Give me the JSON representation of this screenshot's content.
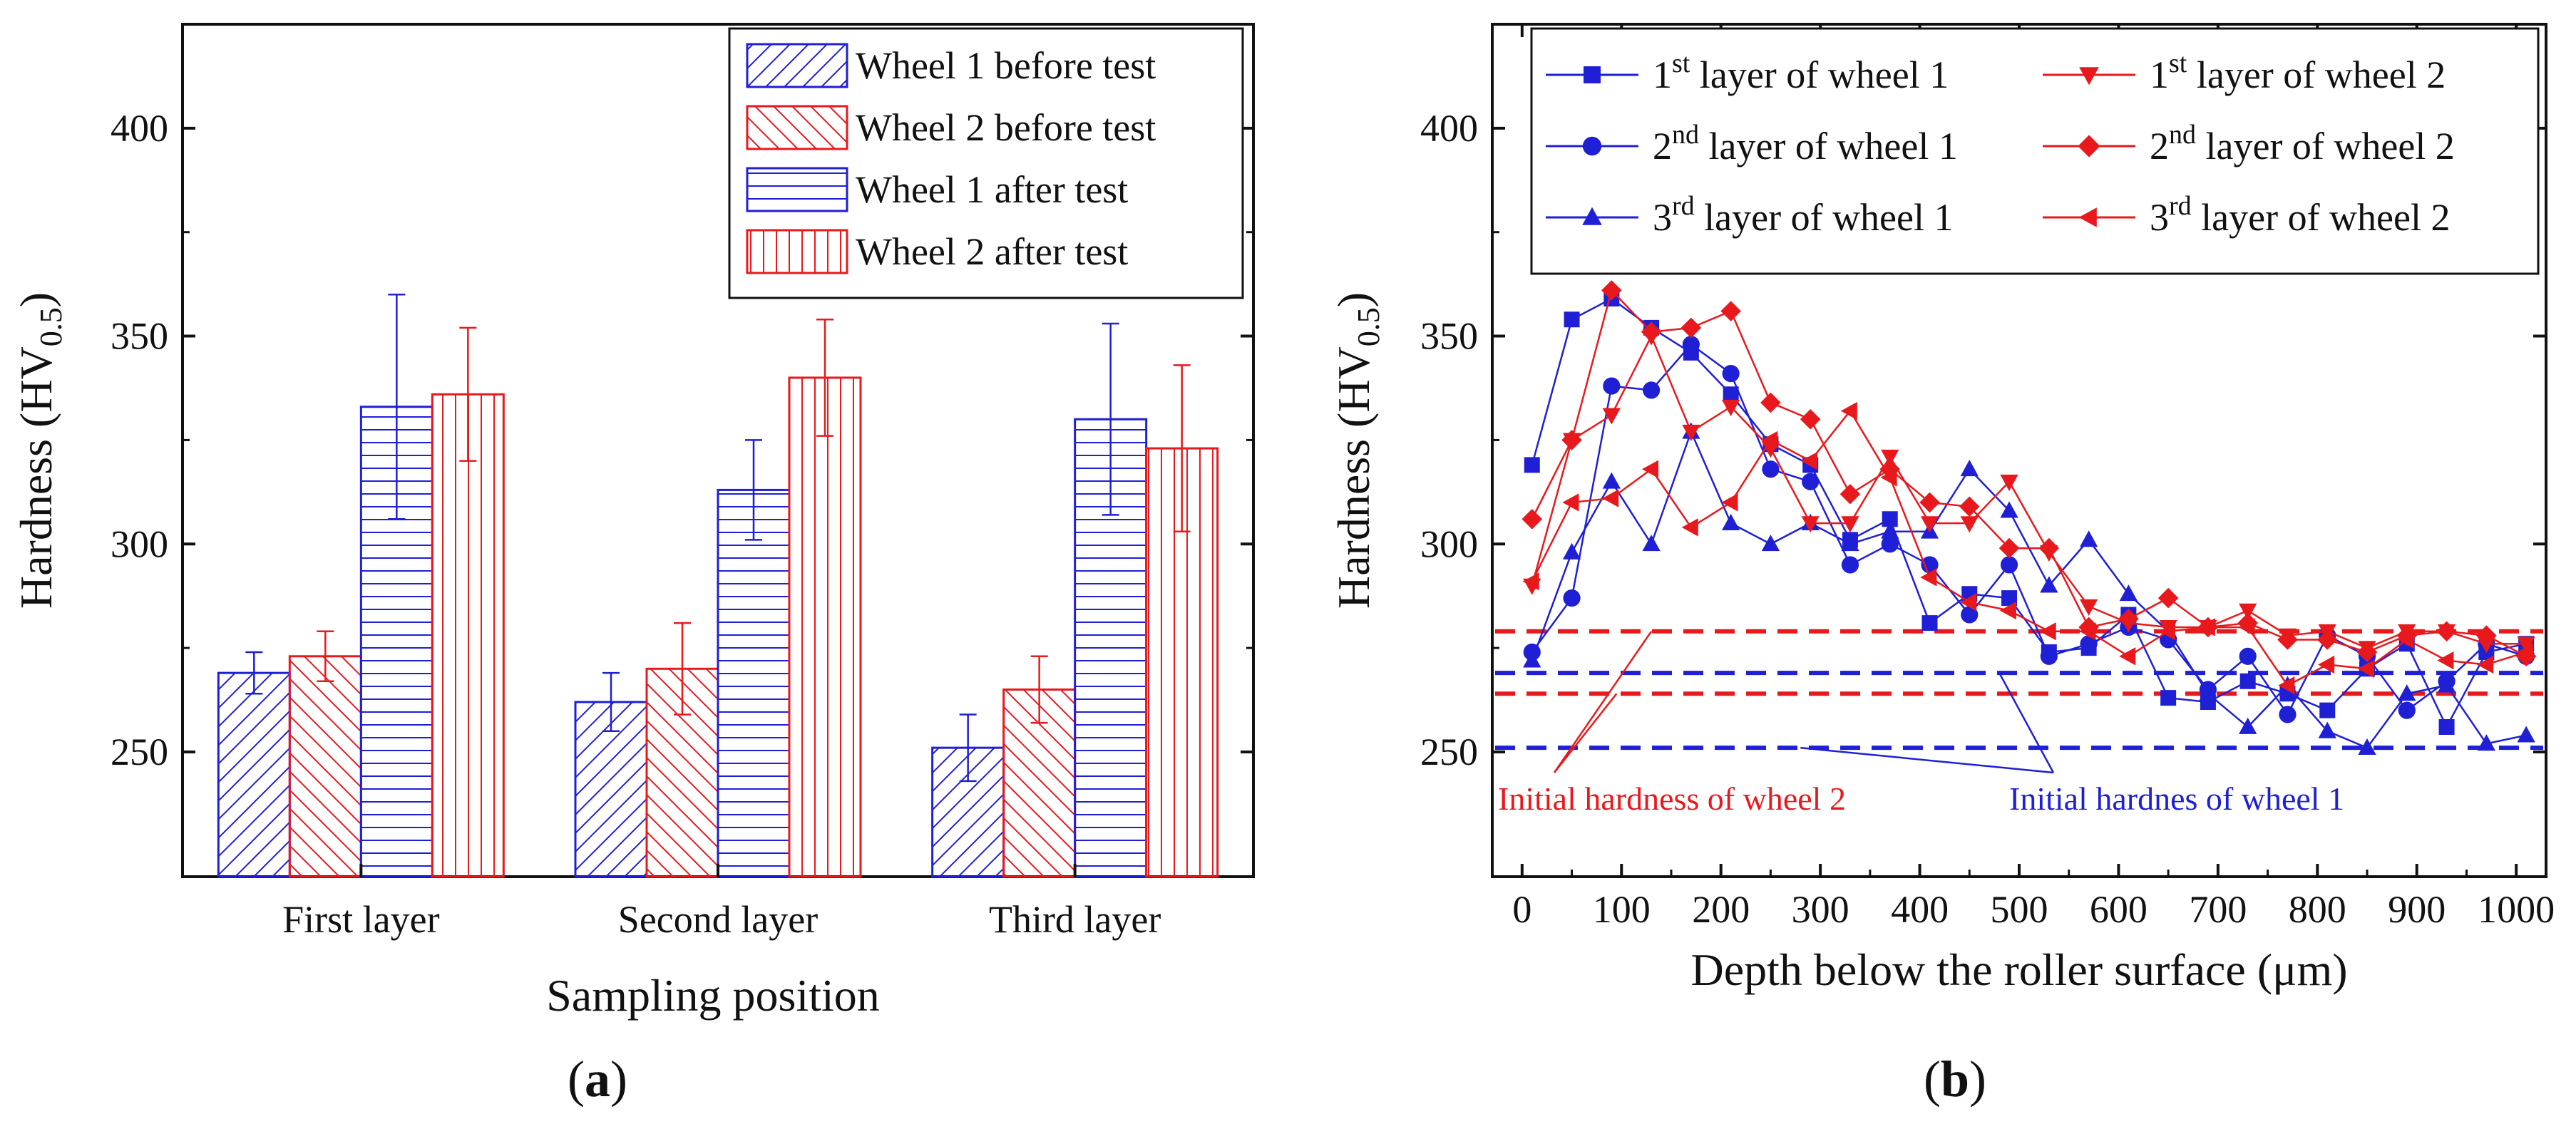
{
  "panel_labels": {
    "a": "a",
    "b": "b"
  },
  "chart_data": [
    {
      "type": "bar",
      "panel": "a",
      "xlabel": "Sampling position",
      "ylabel": "Hardness (HV",
      "ylabel_sub": "0.5",
      "ylabel_end": ")",
      "ylim": [
        220,
        425
      ],
      "yticks": [
        250,
        300,
        350,
        400
      ],
      "categories": [
        "First layer",
        "Second layer",
        "Third layer"
      ],
      "series": [
        {
          "name": "Wheel 1 before test",
          "color": "#1f1fd6",
          "hatch": "diagonal-up",
          "values": [
            269,
            262,
            251
          ],
          "errors": [
            5,
            7,
            8
          ]
        },
        {
          "name": "Wheel 2 before test",
          "color": "#e8191d",
          "hatch": "diagonal-down",
          "values": [
            273,
            270,
            265
          ],
          "errors": [
            6,
            11,
            8
          ]
        },
        {
          "name": "Wheel 1 after test",
          "color": "#1f1fd6",
          "hatch": "horizontal",
          "values": [
            333,
            313,
            330
          ],
          "errors": [
            27,
            12,
            23
          ]
        },
        {
          "name": "Wheel 2 after test",
          "color": "#e8191d",
          "hatch": "vertical",
          "values": [
            336,
            340,
            323
          ],
          "errors": [
            16,
            14,
            20
          ]
        }
      ]
    },
    {
      "type": "line",
      "panel": "b",
      "xlabel": "Depth below the roller surface (μm)",
      "ylabel": "Hardness (HV",
      "ylabel_sub": "0.5",
      "ylabel_end": ")",
      "xlim": [
        -30,
        1030
      ],
      "ylim": [
        220,
        425
      ],
      "xticks": [
        0,
        100,
        200,
        300,
        400,
        500,
        600,
        700,
        800,
        900,
        1000
      ],
      "yticks": [
        250,
        300,
        350,
        400
      ],
      "x": [
        10,
        50,
        90,
        130,
        170,
        210,
        250,
        290,
        330,
        370,
        410,
        450,
        490,
        530,
        570,
        610,
        650,
        690,
        730,
        770,
        810,
        850,
        890,
        930,
        970,
        1010
      ],
      "series": [
        {
          "name": "layer of wheel 1",
          "ord": "1",
          "sup": "st",
          "color": "#1f1fd6",
          "marker": "square",
          "values": [
            319,
            354,
            359,
            352,
            346,
            336,
            324,
            319,
            301,
            306,
            281,
            288,
            287,
            274,
            275,
            283,
            263,
            262,
            267,
            264,
            260,
            270,
            276,
            256,
            274,
            276
          ]
        },
        {
          "name": "layer of wheel 1",
          "ord": "2",
          "sup": "nd",
          "color": "#1f1fd6",
          "marker": "circle",
          "values": [
            274,
            287,
            338,
            337,
            348,
            341,
            318,
            315,
            295,
            300,
            295,
            283,
            295,
            273,
            276,
            280,
            277,
            265,
            273,
            259,
            278,
            273,
            260,
            267,
            276,
            273
          ]
        },
        {
          "name": "layer of wheel 1",
          "ord": "3",
          "sup": "rd",
          "color": "#1f1fd6",
          "marker": "triangle-up",
          "values": [
            272,
            298,
            315,
            300,
            327,
            305,
            300,
            305,
            300,
            303,
            303,
            318,
            308,
            290,
            301,
            288,
            279,
            264,
            256,
            266,
            255,
            251,
            264,
            266,
            252,
            254
          ]
        },
        {
          "name": "layer of wheel 2",
          "ord": "1",
          "sup": "st",
          "color": "#e8191d",
          "marker": "triangle-down",
          "values": [
            290,
            325,
            331,
            350,
            327,
            333,
            323,
            305,
            305,
            321,
            305,
            305,
            315,
            298,
            285,
            281,
            280,
            280,
            284,
            278,
            279,
            275,
            279,
            279,
            276,
            276
          ]
        },
        {
          "name": "layer of wheel 2",
          "ord": "2",
          "sup": "nd",
          "color": "#e8191d",
          "marker": "diamond",
          "values": [
            306,
            325,
            361,
            351,
            352,
            356,
            334,
            330,
            312,
            318,
            310,
            309,
            299,
            299,
            280,
            282,
            287,
            280,
            281,
            277,
            277,
            274,
            278,
            279,
            278,
            273
          ]
        },
        {
          "name": "layer of wheel 2",
          "ord": "3",
          "sup": "rd",
          "color": "#e8191d",
          "marker": "triangle-left",
          "values": [
            291,
            310,
            311,
            318,
            304,
            310,
            325,
            320,
            332,
            316,
            292,
            286,
            284,
            279,
            279,
            273,
            279,
            280,
            280,
            266,
            271,
            270,
            277,
            272,
            271,
            274
          ]
        }
      ],
      "reference_lines": [
        {
          "y": 279,
          "color": "#e8191d"
        },
        {
          "y": 264,
          "color": "#e8191d"
        },
        {
          "y": 269,
          "color": "#1f1fd6"
        },
        {
          "y": 251,
          "color": "#1f1fd6"
        }
      ],
      "annotations": [
        {
          "text": "Initial hardness of wheel 2",
          "color": "#e8191d"
        },
        {
          "text": "Initial hardnes of wheel 1",
          "color": "#1f1fd6"
        }
      ]
    }
  ]
}
